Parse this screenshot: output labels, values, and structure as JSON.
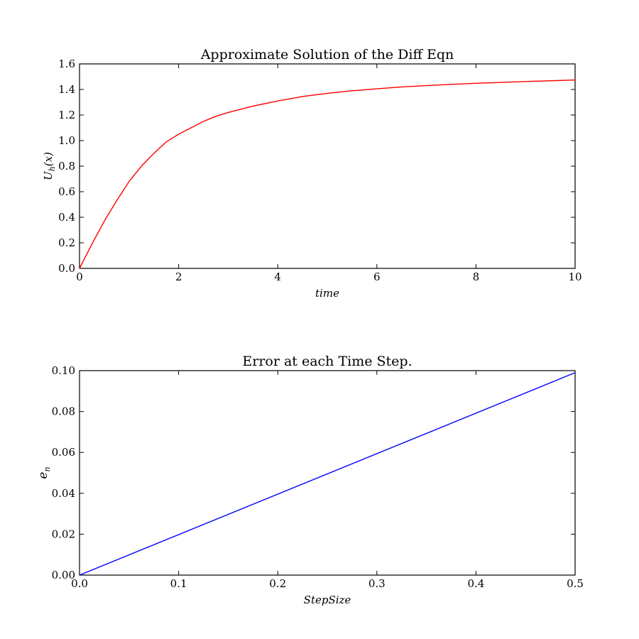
{
  "chart_data": [
    {
      "type": "line",
      "title": "Approximate Solution of the Diff Eqn",
      "xlabel": "time",
      "ylabel_main": "U",
      "ylabel_sub": "h",
      "ylabel_arg": "(x)",
      "xlim": [
        0,
        10
      ],
      "ylim": [
        0,
        1.6
      ],
      "xticks": [
        0,
        2,
        4,
        6,
        8,
        10
      ],
      "xtick_labels": [
        "0",
        "2",
        "4",
        "6",
        "8",
        "10"
      ],
      "yticks": [
        0.0,
        0.2,
        0.4,
        0.6,
        0.8,
        1.0,
        1.2,
        1.4,
        1.6
      ],
      "ytick_labels": [
        "0.0",
        "0.2",
        "0.4",
        "0.6",
        "0.8",
        "1.0",
        "1.2",
        "1.4",
        "1.6"
      ],
      "grid": false,
      "series": [
        {
          "color": "#ff0000",
          "x": [
            0,
            0.25,
            0.5,
            0.75,
            1,
            1.25,
            1.5,
            1.75,
            2,
            2.25,
            2.5,
            2.75,
            3,
            3.5,
            4,
            4.5,
            5,
            5.5,
            6,
            6.5,
            7,
            7.5,
            8,
            8.5,
            9,
            9.5,
            10
          ],
          "y": [
            0.0,
            0.19,
            0.37,
            0.53,
            0.68,
            0.8,
            0.9,
            0.99,
            1.05,
            1.1,
            1.15,
            1.19,
            1.22,
            1.27,
            1.31,
            1.345,
            1.37,
            1.39,
            1.405,
            1.42,
            1.43,
            1.44,
            1.448,
            1.455,
            1.462,
            1.468,
            1.474
          ]
        }
      ]
    },
    {
      "type": "line",
      "title": "Error at each Time Step.",
      "xlabel": "StepSize",
      "ylabel_main": "e",
      "ylabel_sub": "n",
      "xlim": [
        0,
        0.5
      ],
      "ylim": [
        0,
        0.1
      ],
      "xticks": [
        0.0,
        0.1,
        0.2,
        0.3,
        0.4,
        0.5
      ],
      "xtick_labels": [
        "0.0",
        "0.1",
        "0.2",
        "0.3",
        "0.4",
        "0.5"
      ],
      "yticks": [
        0.0,
        0.02,
        0.04,
        0.06,
        0.08,
        0.1
      ],
      "ytick_labels": [
        "0.00",
        "0.02",
        "0.04",
        "0.06",
        "0.08",
        "0.10"
      ],
      "grid": false,
      "series": [
        {
          "color": "#0000ff",
          "x": [
            0.0,
            0.5
          ],
          "y": [
            0.0,
            0.099
          ]
        }
      ]
    }
  ]
}
